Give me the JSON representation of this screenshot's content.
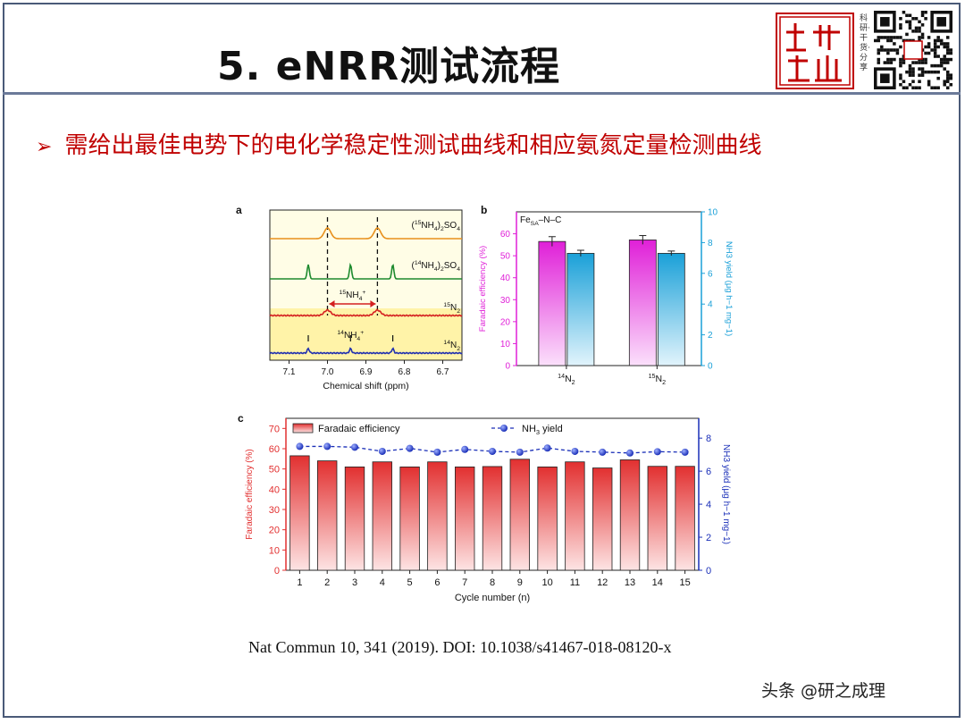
{
  "slide": {
    "title": "5. eNRR测试流程",
    "bullet": "需给出最佳电势下的电化学稳定性测试曲线和相应氨氮定量检测曲线",
    "citation": "Nat Commun 10, 341 (2019). DOI: 10.1038/s41467-018-08120-x",
    "watermark": "头条 @研之成理",
    "logo_text": "成研理出",
    "logo_side_text": "科研·干货·分享",
    "accent_color": "#c00000"
  },
  "panels": {
    "a": {
      "label": "a"
    },
    "b": {
      "label": "b"
    },
    "c": {
      "label": "c"
    }
  },
  "chart_data": [
    {
      "type": "line",
      "panel": "a",
      "xlabel": "Chemical shift (ppm)",
      "ylabel": "",
      "xlim": [
        7.15,
        6.65
      ],
      "x_ticks": [
        "7.1",
        "7.0",
        "6.9",
        "6.8",
        "6.7"
      ],
      "series": [
        {
          "name_parts": [
            "(",
            "15",
            "NH",
            "4",
            ")",
            "2",
            "SO",
            "4"
          ],
          "color": "#e8901c",
          "peaks": [
            7.0,
            6.87
          ]
        },
        {
          "name_parts": [
            "(",
            "14",
            "NH",
            "4",
            ")",
            "2",
            "SO",
            "4"
          ],
          "color": "#1e8a2e",
          "peaks": [
            7.05,
            6.94,
            6.83
          ]
        },
        {
          "name_parts": [
            "",
            "15",
            "N",
            "2",
            "",
            "",
            "",
            ""
          ],
          "color": "#d42020",
          "peaks": [
            7.0,
            6.87
          ]
        },
        {
          "name_parts": [
            "",
            "14",
            "N",
            "2",
            "",
            "",
            "",
            ""
          ],
          "color": "#2030b0",
          "peaks": [
            7.05,
            6.94,
            6.83
          ]
        }
      ],
      "annotations": {
        "n15_parts": [
          "15",
          "NH",
          "4",
          "+"
        ],
        "n14_parts": [
          "14",
          "NH",
          "4",
          "+"
        ]
      }
    },
    {
      "type": "bar",
      "panel": "b",
      "title_parts": [
        "Fe",
        "SA",
        "–N–C"
      ],
      "categories_parts": [
        [
          "14",
          "N",
          "2"
        ],
        [
          "15",
          "N",
          "2"
        ]
      ],
      "ylabel": "Faradaic efficiency (%)",
      "y2label": "NH3 yield (μg h−1 mg−1)",
      "ylim": [
        0,
        70
      ],
      "y_ticks": [
        "0",
        "10",
        "20",
        "30",
        "40",
        "50",
        "60"
      ],
      "y2lim": [
        0,
        10
      ],
      "y2_ticks": [
        "0",
        "2",
        "4",
        "6",
        "8",
        "10"
      ],
      "series": [
        {
          "name": "Faradaic efficiency",
          "axis": "left",
          "values": [
            56.5,
            57.2
          ],
          "errors": [
            2.2,
            2.0
          ],
          "color": "#e020d8"
        },
        {
          "name": "NH3 yield",
          "axis": "right",
          "values": [
            7.3,
            7.3
          ],
          "errors": [
            0.2,
            0.15
          ],
          "color": "#1aa0d8"
        }
      ]
    },
    {
      "type": "bar",
      "panel": "c",
      "xlabel": "Cycle number (n)",
      "ylabel": "Faradaic efficiency (%)",
      "y2label": "NH3 yield (μg h−1 mg−1)",
      "ylim": [
        0,
        75
      ],
      "y_ticks": [
        "0",
        "10",
        "20",
        "30",
        "40",
        "50",
        "60",
        "70"
      ],
      "y2lim": [
        0,
        9.2
      ],
      "y2_ticks": [
        "0",
        "2",
        "4",
        "6",
        "8"
      ],
      "categories": [
        "1",
        "2",
        "3",
        "4",
        "5",
        "6",
        "7",
        "8",
        "9",
        "10",
        "11",
        "12",
        "13",
        "14",
        "15"
      ],
      "legend": {
        "bar_label": "Faradaic efficiency",
        "line_label_parts": [
          "NH",
          "3",
          " yield"
        ],
        "placement": "top-left"
      },
      "series": [
        {
          "name": "Faradaic efficiency",
          "axis": "left",
          "color": "#e23030",
          "values": [
            56.5,
            54.0,
            51.0,
            53.5,
            51.0,
            53.5,
            51.0,
            51.2,
            54.8,
            51.0,
            53.5,
            50.5,
            54.5,
            51.3,
            51.3
          ]
        },
        {
          "name": "NH3 yield",
          "axis": "right",
          "color": "#1a2fb8",
          "values": [
            7.5,
            7.5,
            7.45,
            7.2,
            7.38,
            7.15,
            7.32,
            7.2,
            7.15,
            7.4,
            7.2,
            7.15,
            7.1,
            7.18,
            7.15
          ]
        }
      ]
    }
  ]
}
